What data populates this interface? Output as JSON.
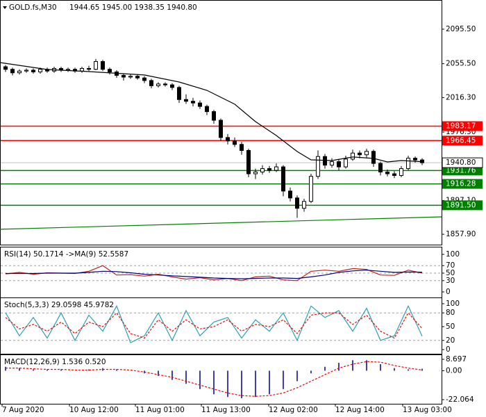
{
  "chart_data": [
    {
      "type": "candlestick",
      "title": "GOLD.fs,M30",
      "info": "1944.65 1945.00 1938.35 1940.80",
      "xlim": [
        -0.8,
        62.8
      ],
      "ylim": [
        1845.9,
        2129.3
      ],
      "yticks": [
        {
          "value": 2095.5,
          "label": "2095.50"
        },
        {
          "value": 2055.5,
          "label": "2055.50"
        },
        {
          "value": 2016.3,
          "label": "2016.30"
        },
        {
          "value": 1976.3,
          "label": "1976.30"
        },
        {
          "value": 1897.1,
          "label": "1897.10"
        },
        {
          "value": 1857.9,
          "label": "1857.90"
        }
      ],
      "xticks": [
        {
          "value": -0.5,
          "label": "7 Aug 2020"
        },
        {
          "value": 9.2,
          "label": "10 Aug 12:00"
        },
        {
          "value": 18.7,
          "label": "11 Aug 01:00"
        },
        {
          "value": 28.2,
          "label": "11 Aug 13:00"
        },
        {
          "value": 37.9,
          "label": "12 Aug 02:00"
        },
        {
          "value": 47.5,
          "label": "12 Aug 14:00"
        },
        {
          "value": 57.2,
          "label": "13 Aug 03:00"
        }
      ],
      "levels": [
        {
          "value": 1983.17,
          "label": "1983.17",
          "color": "#ff0000"
        },
        {
          "value": 1966.45,
          "label": "1966.45",
          "color": "#ff0000"
        },
        {
          "value": 1931.76,
          "label": "1931.76",
          "color": "#008000"
        },
        {
          "value": 1916.28,
          "label": "1916.28",
          "color": "#008000"
        },
        {
          "value": 1891.5,
          "label": "1891.50",
          "color": "#008000"
        }
      ],
      "last": {
        "value": 1940.8,
        "label": "1940.80"
      },
      "series": [
        {
          "type": "candlestick",
          "color": "#000000",
          "values": [
            [
              2052,
              2054,
              2046,
              2049
            ],
            [
              2049,
              2051,
              2042,
              2045
            ],
            [
              2045,
              2049,
              2043,
              2047
            ],
            [
              2047,
              2050,
              2045,
              2048
            ],
            [
              2048,
              2050,
              2044,
              2046
            ],
            [
              2046,
              2051,
              2044,
              2049
            ],
            [
              2049,
              2051,
              2045,
              2047
            ],
            [
              2047,
              2052,
              2045,
              2050
            ],
            [
              2050,
              2052,
              2046,
              2048
            ],
            [
              2048,
              2051,
              2046,
              2049
            ],
            [
              2049,
              2051,
              2045,
              2047
            ],
            [
              2047,
              2052,
              2045,
              2050
            ],
            [
              2050,
              2053,
              2047,
              2049
            ],
            [
              2049,
              2061,
              2048,
              2058
            ],
            [
              2058,
              2060,
              2047,
              2049
            ],
            [
              2049,
              2051,
              2043,
              2046
            ],
            [
              2046,
              2048,
              2039,
              2042
            ],
            [
              2042,
              2044,
              2036,
              2040
            ],
            [
              2040,
              2043,
              2038,
              2041
            ],
            [
              2041,
              2043,
              2037,
              2039
            ],
            [
              2039,
              2041,
              2033,
              2036
            ],
            [
              2036,
              2038,
              2027,
              2030
            ],
            [
              2030,
              2034,
              2028,
              2032
            ],
            [
              2032,
              2034,
              2029,
              2031
            ],
            [
              2031,
              2033,
              2025,
              2028
            ],
            [
              2028,
              2030,
              2010,
              2014
            ],
            [
              2014,
              2020,
              2009,
              2012
            ],
            [
              2012,
              2016,
              2006,
              2010
            ],
            [
              2010,
              2013,
              2003,
              2006
            ],
            [
              2006,
              2008,
              1996,
              2000
            ],
            [
              2000,
              2002,
              1986,
              1990
            ],
            [
              1990,
              1992,
              1966,
              1970
            ],
            [
              1970,
              1974,
              1962,
              1966
            ],
            [
              1966,
              1970,
              1959,
              1962
            ],
            [
              1962,
              1965,
              1950,
              1955
            ],
            [
              1955,
              1957,
              1924,
              1928
            ],
            [
              1928,
              1934,
              1922,
              1930
            ],
            [
              1930,
              1938,
              1927,
              1934
            ],
            [
              1934,
              1937,
              1929,
              1932
            ],
            [
              1932,
              1940,
              1930,
              1936
            ],
            [
              1936,
              1938,
              1902,
              1908
            ],
            [
              1908,
              1912,
              1896,
              1900
            ],
            [
              1900,
              1903,
              1877,
              1888
            ],
            [
              1888,
              1899,
              1884,
              1896
            ],
            [
              1896,
              1928,
              1894,
              1925
            ],
            [
              1925,
              1955,
              1922,
              1948
            ],
            [
              1948,
              1951,
              1934,
              1938
            ],
            [
              1938,
              1946,
              1935,
              1942
            ],
            [
              1942,
              1945,
              1932,
              1936
            ],
            [
              1936,
              1949,
              1934,
              1945
            ],
            [
              1945,
              1956,
              1943,
              1952
            ],
            [
              1952,
              1955,
              1946,
              1950
            ],
            [
              1950,
              1957,
              1947,
              1954
            ],
            [
              1954,
              1956,
              1936,
              1940
            ],
            [
              1940,
              1942,
              1926,
              1930
            ],
            [
              1930,
              1933,
              1925,
              1928
            ],
            [
              1928,
              1931,
              1923,
              1926
            ],
            [
              1926,
              1937,
              1924,
              1934
            ],
            [
              1934,
              1949,
              1932,
              1946
            ],
            [
              1946,
              1948,
              1941,
              1944
            ],
            [
              1944,
              1946,
              1938,
              1940.8
            ]
          ]
        },
        {
          "type": "line",
          "color": "#000000",
          "x": [
            -0.8,
            6,
            12,
            20,
            25,
            29,
            33,
            36,
            39,
            42,
            44,
            47,
            50,
            53,
            55,
            57,
            60
          ],
          "values": [
            2056.8,
            2048.8,
            2046.4,
            2042.4,
            2034.3,
            2024.6,
            2008.6,
            1988.4,
            1972.3,
            1953.8,
            1944.1,
            1943.3,
            1947.4,
            1945.8,
            1941.7,
            1943.3,
            1942
          ]
        },
        {
          "type": "line",
          "color": "#008000",
          "x": [
            -0.8,
            62.8
          ],
          "values": [
            1863.7,
            1878.1
          ]
        }
      ]
    },
    {
      "type": "line",
      "title": "RSI(14) 50.1714 ->MA(9) 52.5587",
      "xlim": [
        -0.8,
        62.8
      ],
      "ylim": [
        0,
        100
      ],
      "yticks": [
        100,
        70,
        50,
        30,
        0
      ],
      "levels": [
        70,
        50,
        30
      ],
      "x": [
        0,
        2,
        4,
        6,
        8,
        10,
        12,
        14,
        16,
        18,
        20,
        22,
        24,
        26,
        28,
        30,
        32,
        34,
        36,
        38,
        40,
        42,
        44,
        46,
        48,
        50,
        52,
        54,
        56,
        58,
        60
      ],
      "series": [
        {
          "type": "line",
          "color": "#c0201a",
          "values": [
            48,
            52,
            47,
            51,
            50,
            49,
            55,
            70,
            45,
            46,
            42,
            47,
            40,
            34,
            38,
            32,
            36,
            30,
            40,
            42,
            32,
            30,
            55,
            58,
            55,
            62,
            60,
            45,
            44,
            58,
            50.17
          ]
        },
        {
          "type": "line",
          "color": "#000080",
          "values": [
            49,
            49,
            49,
            50,
            50,
            50,
            52,
            55,
            54,
            51,
            47,
            45,
            43,
            41,
            39,
            37,
            36,
            35,
            36,
            37,
            37,
            36,
            40,
            45,
            52,
            56,
            58,
            55,
            52,
            53,
            52.56
          ]
        }
      ]
    },
    {
      "type": "line",
      "title": "Stoch(5,3,3) 29.0598 45.9782",
      "xlim": [
        -0.8,
        62.8
      ],
      "ylim": [
        0,
        100
      ],
      "yticks": [
        100,
        80,
        50,
        20,
        0
      ],
      "levels": [
        80,
        20
      ],
      "x": [
        0,
        2,
        4,
        6,
        8,
        10,
        12,
        14,
        16,
        18,
        20,
        22,
        24,
        26,
        28,
        30,
        32,
        34,
        36,
        38,
        40,
        42,
        44,
        46,
        48,
        50,
        52,
        54,
        56,
        58,
        60
      ],
      "series": [
        {
          "type": "line",
          "color": "#2a9fb0",
          "values": [
            80,
            30,
            70,
            25,
            80,
            20,
            75,
            40,
            95,
            15,
            30,
            80,
            20,
            85,
            30,
            60,
            70,
            25,
            65,
            40,
            80,
            20,
            95,
            70,
            85,
            40,
            90,
            20,
            30,
            95,
            29.06
          ]
        },
        {
          "type": "line",
          "color": "#ff0000",
          "dashed": true,
          "values": [
            70,
            45,
            55,
            40,
            60,
            35,
            60,
            50,
            80,
            35,
            25,
            65,
            40,
            65,
            45,
            50,
            65,
            40,
            55,
            50,
            65,
            35,
            75,
            80,
            80,
            55,
            75,
            40,
            25,
            80,
            45.98
          ]
        }
      ]
    },
    {
      "type": "bar",
      "title": "MACD(12,26,9) 1.536 0.520",
      "xlim": [
        -0.8,
        62.8
      ],
      "ylim": [
        -22.064,
        8.697
      ],
      "yticks": [
        8.697,
        {
          "value": 0,
          "label": "0.00"
        },
        -22.064
      ],
      "x": [
        0,
        2,
        4,
        6,
        8,
        10,
        12,
        14,
        16,
        18,
        20,
        22,
        24,
        26,
        28,
        30,
        32,
        34,
        36,
        38,
        40,
        42,
        44,
        46,
        48,
        50,
        52,
        54,
        56,
        58,
        60
      ],
      "series": [
        {
          "type": "bar",
          "color": "#000080",
          "values": [
            3,
            2,
            1,
            1,
            1,
            0,
            1,
            2,
            1,
            0,
            -2,
            -4,
            -7,
            -10,
            -14,
            -18,
            -20,
            -21,
            -20,
            -18,
            -14,
            -8,
            -2,
            3,
            6,
            8,
            8,
            5,
            2,
            1,
            1.536
          ]
        },
        {
          "type": "line",
          "color": "#ff0000",
          "dashed": true,
          "values": [
            2,
            2,
            1.5,
            1,
            1,
            0.5,
            0.5,
            1,
            1,
            0.5,
            -1,
            -3,
            -5,
            -8,
            -11,
            -14,
            -17,
            -19,
            -19.5,
            -19,
            -17,
            -13,
            -8,
            -3,
            2,
            5,
            7,
            6.5,
            4,
            2,
            0.52
          ]
        }
      ]
    }
  ]
}
